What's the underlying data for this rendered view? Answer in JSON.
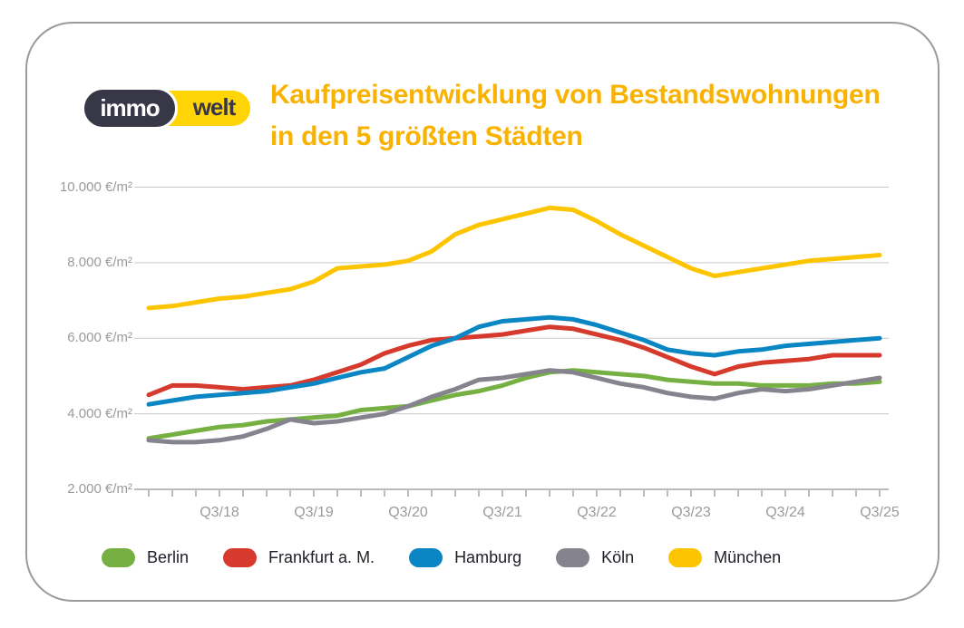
{
  "logo": {
    "immo": "immo",
    "welt": "welt"
  },
  "title": {
    "line1": "Kaufpreisentwicklung von Bestandswohnungen",
    "line2": "in den 5 größten Städten"
  },
  "colors": {
    "title": "#f9b200",
    "logo_dark": "#373747",
    "logo_yellow": "#ffd508",
    "card_border": "#9a9a9a",
    "gridline": "#c9c9c9",
    "axis": "#a6a6a6",
    "axis_text": "#9b9b9b",
    "legend_text": "#20202a"
  },
  "chart_data": {
    "type": "line",
    "title": "Kaufpreisentwicklung von Bestandswohnungen in den 5 größten Städten",
    "unit": "€/m²",
    "grid": "horizontal",
    "legend_position": "bottom",
    "ylim": [
      2000,
      10000
    ],
    "y_ticks": [
      {
        "value": 2000,
        "label": "2.000 €/m²"
      },
      {
        "value": 4000,
        "label": "4.000 €/m²"
      },
      {
        "value": 6000,
        "label": "6.000 €/m²"
      },
      {
        "value": 8000,
        "label": "8.000 €/m²"
      },
      {
        "value": 10000,
        "label": "10.000 €/m²"
      }
    ],
    "x": [
      "Q4/17",
      "Q1/18",
      "Q2/18",
      "Q3/18",
      "Q4/18",
      "Q1/19",
      "Q2/19",
      "Q3/19",
      "Q4/19",
      "Q1/20",
      "Q2/20",
      "Q3/20",
      "Q4/20",
      "Q1/21",
      "Q2/21",
      "Q3/21",
      "Q4/21",
      "Q1/22",
      "Q2/22",
      "Q3/22",
      "Q4/22",
      "Q1/23",
      "Q2/23",
      "Q3/23",
      "Q4/23",
      "Q1/24",
      "Q2/24",
      "Q3/24",
      "Q4/24",
      "Q1/25",
      "Q2/25",
      "Q3/25"
    ],
    "x_labeled_ticks": [
      "Q3/18",
      "Q3/19",
      "Q3/20",
      "Q3/21",
      "Q3/22",
      "Q3/23",
      "Q3/24",
      "Q3/25"
    ],
    "series": [
      {
        "name": "Berlin",
        "color": "#76b043",
        "values": [
          3350,
          3450,
          3550,
          3650,
          3700,
          3800,
          3850,
          3900,
          3950,
          4100,
          4150,
          4200,
          4350,
          4500,
          4600,
          4750,
          4950,
          5100,
          5150,
          5100,
          5050,
          5000,
          4900,
          4850,
          4800,
          4800,
          4750,
          4750,
          4750,
          4800,
          4800,
          4850
        ]
      },
      {
        "name": "Frankfurt a. M.",
        "color": "#d53a2d",
        "values": [
          4500,
          4750,
          4750,
          4700,
          4650,
          4700,
          4750,
          4900,
          5100,
          5300,
          5600,
          5800,
          5950,
          6000,
          6050,
          6100,
          6200,
          6300,
          6250,
          6100,
          5950,
          5750,
          5500,
          5250,
          5050,
          5250,
          5350,
          5400,
          5450,
          5550,
          5550,
          5550
        ]
      },
      {
        "name": "Hamburg",
        "color": "#0986c3",
        "values": [
          4250,
          4350,
          4450,
          4500,
          4550,
          4600,
          4700,
          4800,
          4950,
          5100,
          5200,
          5500,
          5800,
          6000,
          6300,
          6450,
          6500,
          6550,
          6500,
          6350,
          6150,
          5950,
          5700,
          5600,
          5550,
          5650,
          5700,
          5800,
          5850,
          5900,
          5950,
          6000
        ]
      },
      {
        "name": "Köln",
        "color": "#85848e",
        "values": [
          3300,
          3250,
          3250,
          3300,
          3400,
          3600,
          3850,
          3750,
          3800,
          3900,
          4000,
          4200,
          4450,
          4650,
          4900,
          4950,
          5050,
          5150,
          5100,
          4950,
          4800,
          4700,
          4550,
          4450,
          4400,
          4550,
          4650,
          4600,
          4650,
          4750,
          4850,
          4950
        ]
      },
      {
        "name": "München",
        "color": "#fdc500",
        "values": [
          6800,
          6850,
          6950,
          7050,
          7100,
          7200,
          7300,
          7500,
          7850,
          7900,
          7950,
          8050,
          8300,
          8750,
          9000,
          9150,
          9300,
          9450,
          9400,
          9100,
          8750,
          8450,
          8150,
          7850,
          7650,
          7750,
          7850,
          7950,
          8050,
          8100,
          8150,
          8200
        ]
      }
    ]
  }
}
